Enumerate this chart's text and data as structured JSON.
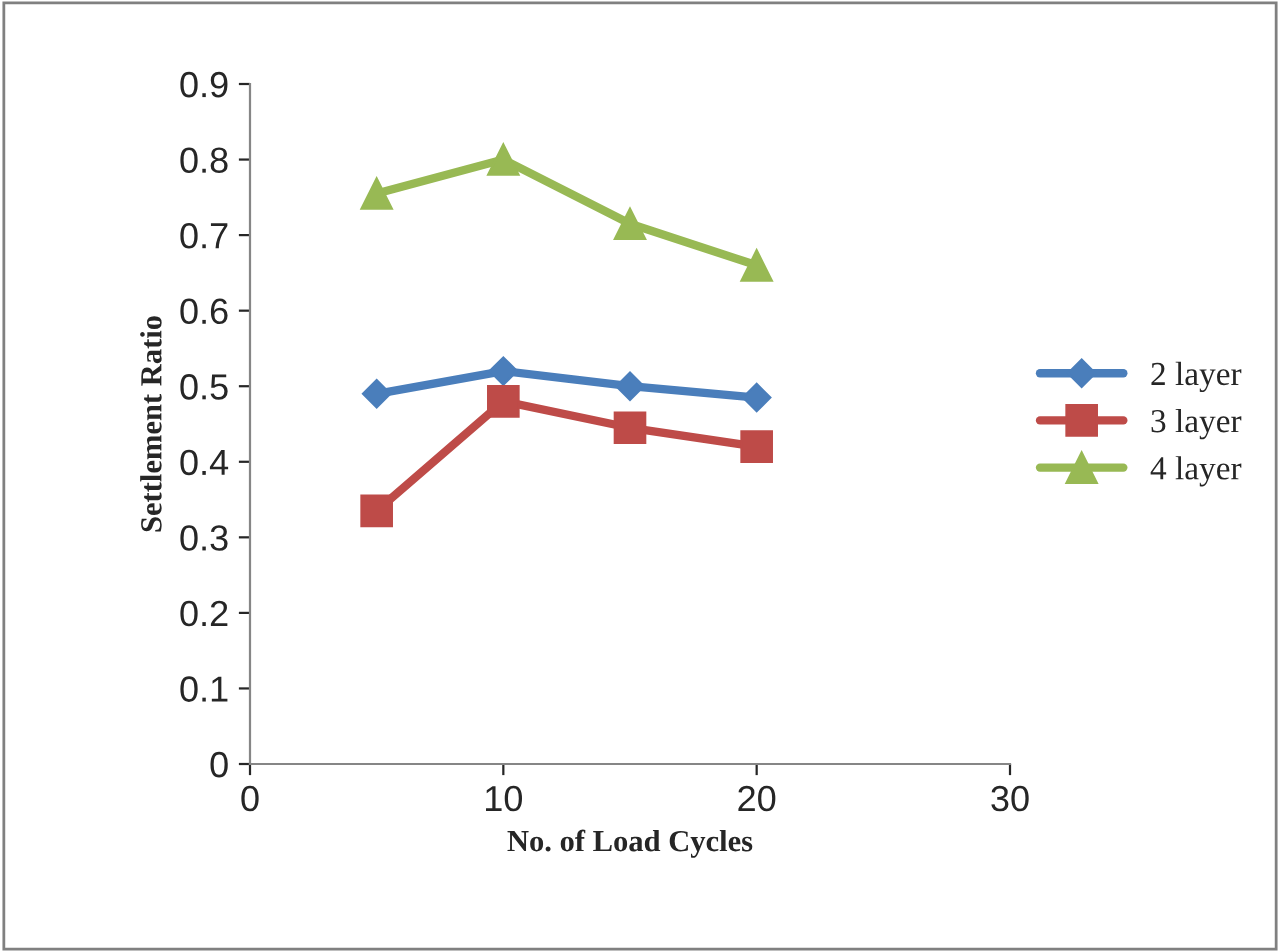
{
  "chart_data": {
    "type": "line",
    "xlabel": "No. of Load Cycles",
    "ylabel": "Settlement Ratio",
    "x": [
      5,
      10,
      15,
      20
    ],
    "series": [
      {
        "name": "2 layer",
        "color": "#4a7ebb",
        "marker": "diamond",
        "values": [
          0.49,
          0.52,
          0.5,
          0.485
        ]
      },
      {
        "name": "3 layer",
        "color": "#be4b48",
        "marker": "square",
        "values": [
          0.335,
          0.48,
          0.445,
          0.42
        ]
      },
      {
        "name": "4 layer",
        "color": "#98b954",
        "marker": "triangle",
        "values": [
          0.755,
          0.8,
          0.715,
          0.66
        ]
      }
    ],
    "xlim": [
      0,
      30
    ],
    "xticks": [
      0,
      10,
      20,
      30
    ],
    "ylim": [
      0,
      0.9
    ],
    "yticks": [
      0,
      0.1,
      0.2,
      0.3,
      0.4,
      0.5,
      0.6,
      0.7,
      0.8,
      0.9
    ],
    "grid": false,
    "legend": "right",
    "line_style": "solid"
  }
}
